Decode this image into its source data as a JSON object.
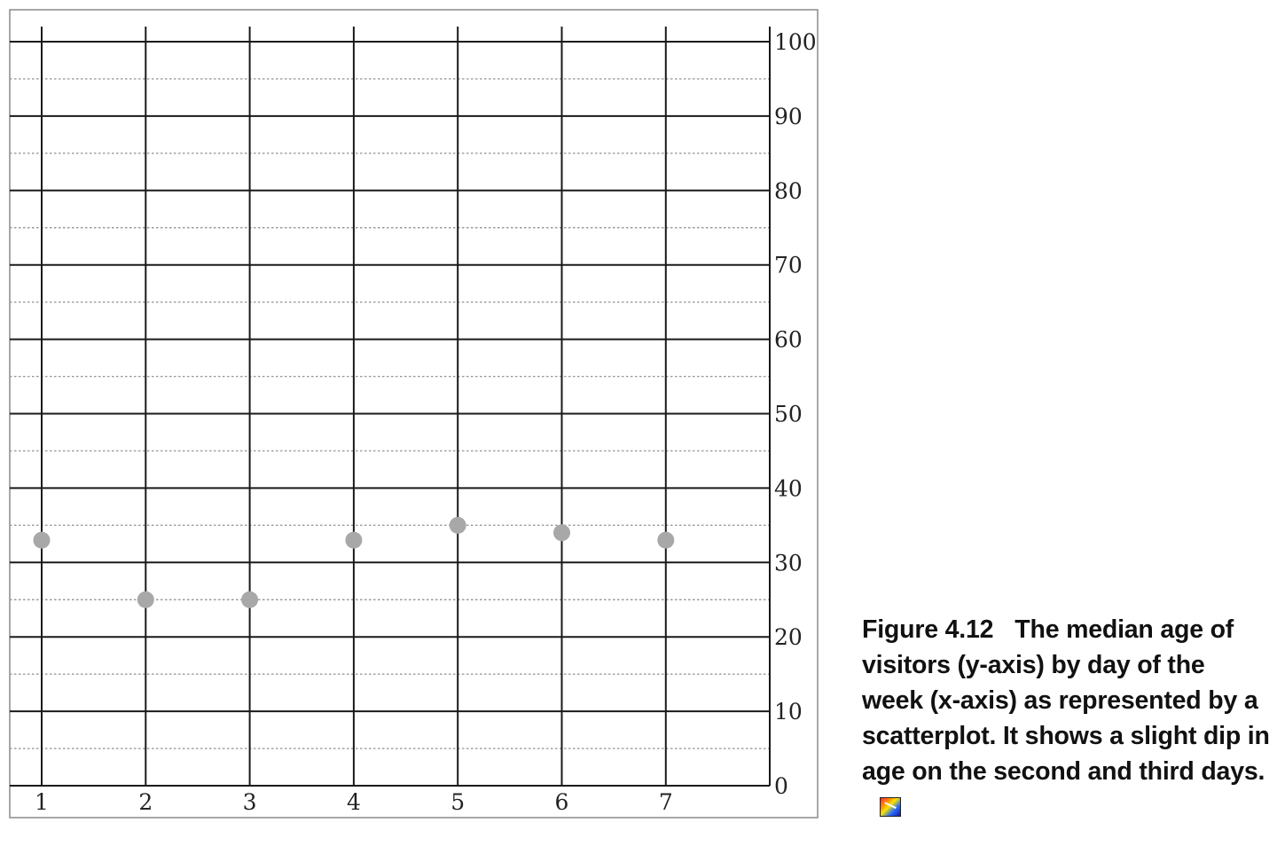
{
  "chart_data": {
    "type": "scatter",
    "title": "",
    "xlabel": "",
    "ylabel": "",
    "x": [
      1,
      2,
      3,
      4,
      5,
      6,
      7
    ],
    "y": [
      33,
      25,
      25,
      33,
      35,
      34,
      33
    ],
    "xticks": [
      "1",
      "2",
      "3",
      "4",
      "5",
      "6",
      "7"
    ],
    "yticks": [
      "0",
      "10",
      "20",
      "30",
      "40",
      "50",
      "60",
      "70",
      "80",
      "90",
      "100"
    ],
    "xlim": [
      0.7,
      8.5
    ],
    "ylim": [
      0,
      100
    ],
    "y_axis_position": "right",
    "grid": true,
    "minor_grid": "dotted",
    "marker_color": "#a8a8a8",
    "legend": "none"
  },
  "caption": {
    "figure_number": "Figure 4.12",
    "text": "The median age of visitors (y-axis) by day of the week (x-axis) as represented by a scatterplot. It shows a slight dip in age on the second and third days.",
    "icon": "color-figure-icon"
  }
}
